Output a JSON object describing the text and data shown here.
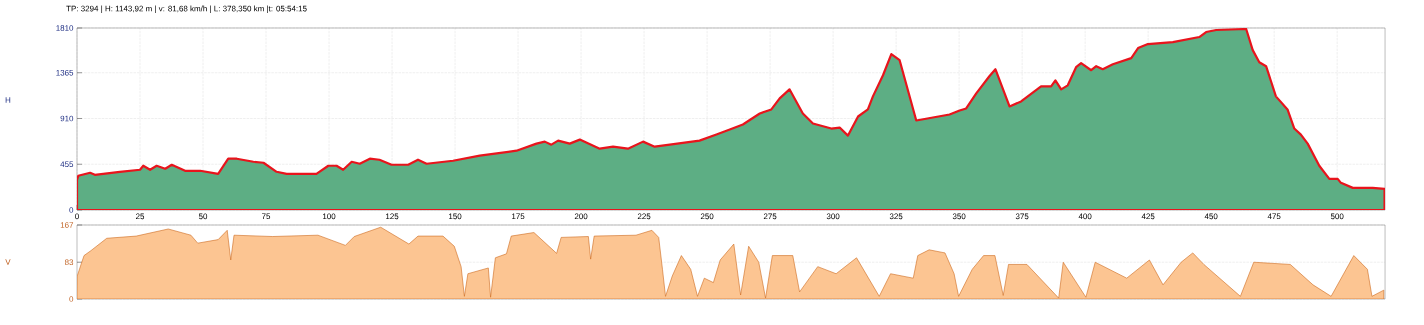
{
  "chart_data": [
    {
      "type": "area",
      "title": "TP: 3294 | H: 1143,92 m | v: 81,68 km/h | L: 378,350 km |t: 05:54:15",
      "ylabel": "H",
      "color": "#5dae84",
      "x": [
        0,
        0.5,
        5.2,
        7.1,
        17,
        25,
        26.3,
        29,
        31.6,
        35,
        37.6,
        42.9,
        48.9,
        56,
        60,
        63.4,
        70,
        74,
        79.2,
        83.2,
        95,
        99.7,
        103,
        105.6,
        109,
        112.2,
        116.2,
        120,
        124.8,
        131.4,
        135.3,
        138.7,
        149.2,
        159.8,
        174.4,
        182.3,
        185.6,
        188.2,
        190.9,
        195.5,
        199.5,
        207.4,
        212.7,
        218.6,
        224.6,
        229.2,
        235.2,
        247,
        253.7,
        259,
        264.2,
        270.9,
        275.5,
        278.8,
        282.7,
        288,
        292,
        299.3,
        302.6,
        305.9,
        309.9,
        313.8,
        315.8,
        319.8,
        323.1,
        326.4,
        333,
        346.2,
        350.2,
        352.8,
        356.8,
        362,
        364.4,
        370,
        374.6,
        382.5,
        386.5,
        388.2,
        390.5,
        393.1,
        396.4,
        398.4,
        402.4,
        404.4,
        407,
        411,
        418.3,
        421,
        424.9,
        434.8,
        445.3,
        448,
        452,
        463.9,
        466.5,
        469.1,
        471.8,
        475.7,
        480.3,
        483,
        485.6,
        488.3,
        492.9,
        496.9,
        500.2,
        501.5,
        506.2,
        514.1,
        518.8
      ],
      "values": [
        300,
        340,
        370,
        350,
        380,
        400,
        440,
        400,
        440,
        410,
        450,
        390,
        390,
        360,
        510,
        510,
        480,
        470,
        380,
        360,
        360,
        440,
        440,
        400,
        480,
        460,
        510,
        500,
        450,
        450,
        500,
        460,
        490,
        540,
        590,
        660,
        680,
        650,
        690,
        660,
        700,
        610,
        630,
        610,
        680,
        630,
        650,
        690,
        750,
        800,
        850,
        960,
        1000,
        1110,
        1200,
        960,
        860,
        810,
        820,
        740,
        930,
        1000,
        1130,
        1340,
        1550,
        1490,
        890,
        950,
        990,
        1010,
        1160,
        1330,
        1400,
        1030,
        1080,
        1230,
        1230,
        1290,
        1200,
        1240,
        1420,
        1460,
        1390,
        1430,
        1400,
        1450,
        1510,
        1610,
        1650,
        1670,
        1720,
        1770,
        1790,
        1800,
        1590,
        1470,
        1430,
        1130,
        1000,
        810,
        750,
        660,
        440,
        310,
        310,
        270,
        220,
        220,
        210
      ],
      "xlim": [
        0,
        519
      ],
      "ylim": [
        0,
        1810
      ],
      "xticks": [
        0,
        25,
        50,
        75,
        100,
        125,
        150,
        175,
        200,
        225,
        250,
        275,
        300,
        325,
        350,
        375,
        400,
        425,
        450,
        475,
        500
      ],
      "yticks": [
        0,
        455,
        910,
        1365,
        1810
      ],
      "grid": true
    },
    {
      "type": "area",
      "ylabel": "V",
      "color": "#fcc592",
      "x": [
        0,
        0.1,
        1.6,
        2.8,
        5.5,
        11.8,
        23.5,
        36.2,
        45.2,
        47.9,
        56,
        59.6,
        61,
        62.3,
        77.6,
        95.6,
        106.5,
        110,
        120.5,
        131.7,
        135.3,
        145.2,
        149.7,
        152.4,
        153.7,
        155.1,
        163.2,
        164.1,
        166,
        170.4,
        172.3,
        181.3,
        190.3,
        192.1,
        202.9,
        203.8,
        205.2,
        221.8,
        228.1,
        230.8,
        232.3,
        233.5,
        236.2,
        239.8,
        243.5,
        246.2,
        248.9,
        252.5,
        255.2,
        260.6,
        263.3,
        266.5,
        270.5,
        273.2,
        275.9,
        284,
        286.7,
        293.9,
        301.2,
        309.3,
        318.3,
        322.8,
        331.8,
        333.6,
        338.1,
        344.4,
        348,
        349.8,
        355.2,
        359.7,
        364.2,
        367.5,
        369.6,
        376.9,
        389.5,
        391.3,
        400.3,
        404,
        416.5,
        425.5,
        430.9,
        438.1,
        442.7,
        447.1,
        461.6,
        466.9,
        481.4,
        490.4,
        497.6,
        506.6,
        512,
        513.8,
        518.5
      ],
      "values": [
        0,
        52,
        78,
        98,
        109,
        137,
        142,
        158,
        144,
        126,
        134,
        155,
        88,
        144,
        141,
        144,
        121,
        141,
        162,
        124,
        142,
        142,
        119,
        73,
        6,
        57,
        70,
        4,
        93,
        102,
        142,
        150,
        103,
        139,
        141,
        90,
        142,
        144,
        155,
        139,
        67,
        6,
        52,
        98,
        67,
        6,
        47,
        37,
        88,
        124,
        9,
        119,
        83,
        2,
        98,
        98,
        16,
        73,
        57,
        93,
        6,
        57,
        47,
        98,
        111,
        104,
        57,
        6,
        67,
        98,
        98,
        8,
        78,
        78,
        2,
        83,
        4,
        83,
        47,
        88,
        32,
        83,
        104,
        78,
        6,
        83,
        78,
        32,
        6,
        98,
        67,
        6,
        20
      ],
      "xlim": [
        0,
        519
      ],
      "ylim": [
        0,
        167
      ],
      "yticks": [
        0,
        83,
        167
      ],
      "grid": "y",
      "tick_labels": "y"
    }
  ]
}
